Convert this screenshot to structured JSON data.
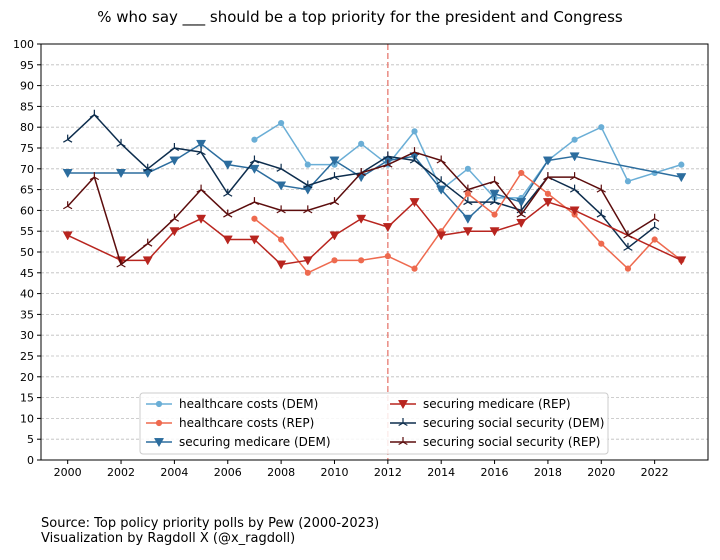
{
  "chart_data": {
    "type": "line",
    "title": "% who say ___ should be a top priority for the president and Congress",
    "xlabel": "",
    "ylabel": "",
    "xlim": [
      1999.0,
      2024.0
    ],
    "ylim": [
      0,
      100
    ],
    "xticks": [
      2000,
      2002,
      2004,
      2006,
      2008,
      2010,
      2012,
      2014,
      2016,
      2018,
      2020,
      2022
    ],
    "yticks": [
      0,
      5,
      10,
      15,
      20,
      25,
      30,
      35,
      40,
      45,
      50,
      55,
      60,
      65,
      70,
      75,
      80,
      85,
      90,
      95,
      100
    ],
    "grid": "horizontal dashed",
    "legend_position": "lower center",
    "reference_line": {
      "x": 2012,
      "style": "dashed",
      "color": "#e8837a"
    },
    "series": [
      {
        "name": "healthcare costs (DEM)",
        "color": "#6aaed6",
        "marker": "circle",
        "width": 1.5,
        "x": [
          2007,
          2008,
          2009,
          2010,
          2011,
          2012,
          2013,
          2014,
          2015,
          2016,
          2017,
          2018,
          2019,
          2020,
          2021,
          2022,
          2023
        ],
        "y": [
          77,
          81,
          71,
          71,
          76,
          71,
          79,
          65,
          70,
          63,
          63,
          72,
          77,
          80,
          67,
          69,
          71
        ]
      },
      {
        "name": "securing medicare (DEM)",
        "color": "#2c6d9e",
        "marker": "triangle-down",
        "width": 1.5,
        "x": [
          2000,
          2002,
          2003,
          2004,
          2005,
          2006,
          2007,
          2008,
          2009,
          2010,
          2011,
          2012,
          2013,
          2014,
          2015,
          2016,
          2017,
          2018,
          2019,
          2023
        ],
        "y": [
          69,
          69,
          69,
          72,
          76,
          71,
          70,
          66,
          65,
          72,
          68,
          72,
          73,
          65,
          58,
          64,
          62,
          72,
          73,
          68
        ]
      },
      {
        "name": "securing social security (DEM)",
        "color": "#0d2d4d",
        "marker": "tri",
        "width": 1.5,
        "x": [
          2000,
          2001,
          2002,
          2003,
          2004,
          2005,
          2006,
          2007,
          2008,
          2009,
          2010,
          2011,
          2012,
          2013,
          2014,
          2015,
          2016,
          2017,
          2018,
          2019,
          2020,
          2021,
          2022
        ],
        "y": [
          77,
          83,
          76,
          70,
          75,
          74,
          64,
          72,
          70,
          66,
          68,
          69,
          73,
          72,
          67,
          62,
          62,
          60,
          68,
          65,
          59,
          51,
          56
        ]
      },
      {
        "name": "healthcare costs (REP)",
        "color": "#ee6a4f",
        "marker": "circle",
        "width": 1.5,
        "x": [
          2007,
          2008,
          2009,
          2010,
          2011,
          2012,
          2013,
          2014,
          2015,
          2016,
          2017,
          2018,
          2019,
          2020,
          2021,
          2022,
          2023
        ],
        "y": [
          58,
          53,
          45,
          48,
          48,
          49,
          46,
          55,
          64,
          59,
          69,
          64,
          59,
          52,
          46,
          53,
          48
        ]
      },
      {
        "name": "securing medicare (REP)",
        "color": "#b8251f",
        "marker": "triangle-down",
        "width": 1.5,
        "x": [
          2000,
          2002,
          2003,
          2004,
          2005,
          2006,
          2007,
          2008,
          2009,
          2010,
          2011,
          2012,
          2013,
          2014,
          2015,
          2016,
          2017,
          2018,
          2019,
          2023
        ],
        "y": [
          54,
          48,
          48,
          55,
          58,
          53,
          53,
          47,
          48,
          54,
          58,
          56,
          62,
          54,
          55,
          55,
          57,
          62,
          60,
          48
        ]
      },
      {
        "name": "securing social security (REP)",
        "color": "#5c0d0d",
        "marker": "tri",
        "width": 1.5,
        "x": [
          2000,
          2001,
          2002,
          2003,
          2004,
          2005,
          2006,
          2007,
          2008,
          2009,
          2010,
          2011,
          2012,
          2013,
          2014,
          2015,
          2016,
          2017,
          2018,
          2019,
          2020,
          2021,
          2022
        ],
        "y": [
          61,
          68,
          47,
          52,
          58,
          65,
          59,
          62,
          60,
          60,
          62,
          69,
          71,
          74,
          72,
          65,
          67,
          59,
          68,
          68,
          65,
          54,
          58
        ]
      }
    ],
    "legend_order": [
      0,
      3,
      1,
      4,
      2,
      5
    ]
  },
  "source": {
    "line1": "Source: Top policy priority polls by Pew (2000-2023)",
    "line2": "Visualization by Ragdoll X (@x_ragdoll)"
  }
}
